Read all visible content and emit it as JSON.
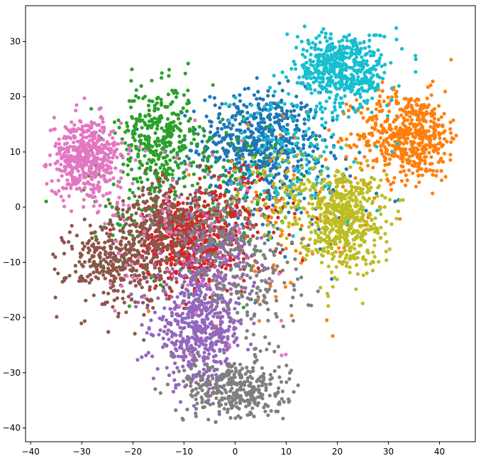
{
  "chart_data": {
    "type": "scatter",
    "title": "",
    "xlabel": "",
    "ylabel": "",
    "xlim": [
      -41,
      47
    ],
    "ylim": [
      -42.5,
      36.5
    ],
    "x_ticks": [
      -40,
      -30,
      -20,
      -10,
      0,
      10,
      20,
      30,
      40
    ],
    "y_ticks": [
      -40,
      -30,
      -20,
      -10,
      0,
      10,
      20,
      30
    ],
    "grid": false,
    "legend": "none",
    "series": [
      {
        "color": "#1f77b4",
        "approx_points": 700,
        "clusters": [
          {
            "cx": 5,
            "cy": 12,
            "sx": 6,
            "sy": 4.5,
            "w": 0.8
          },
          {
            "cx": 8,
            "cy": 2,
            "sx": 8,
            "sy": 5,
            "w": 0.2
          }
        ]
      },
      {
        "color": "#ff7f0e",
        "approx_points": 650,
        "clusters": [
          {
            "cx": 34,
            "cy": 13,
            "sx": 5,
            "sy": 4,
            "w": 0.85
          },
          {
            "cx": 12,
            "cy": -2,
            "sx": 9,
            "sy": 8,
            "w": 0.15
          }
        ]
      },
      {
        "color": "#2ca02c",
        "approx_points": 600,
        "clusters": [
          {
            "cx": -15,
            "cy": 13,
            "sx": 3.5,
            "sy": 4.5,
            "w": 0.5
          },
          {
            "cx": -10,
            "cy": 3,
            "sx": 9,
            "sy": 8,
            "w": 0.5
          }
        ]
      },
      {
        "color": "#d62728",
        "approx_points": 650,
        "clusters": [
          {
            "cx": -10,
            "cy": -6,
            "sx": 4.5,
            "sy": 4,
            "w": 0.65
          },
          {
            "cx": -2,
            "cy": -3,
            "sx": 6,
            "sy": 5,
            "w": 0.35
          }
        ]
      },
      {
        "color": "#9467bd",
        "approx_points": 700,
        "clusters": [
          {
            "cx": -7,
            "cy": -22,
            "sx": 4.5,
            "sy": 5,
            "w": 0.8
          },
          {
            "cx": -4,
            "cy": -9,
            "sx": 4,
            "sy": 4,
            "w": 0.2
          }
        ]
      },
      {
        "color": "#8c564b",
        "approx_points": 600,
        "clusters": [
          {
            "cx": -23,
            "cy": -10,
            "sx": 5,
            "sy": 4,
            "w": 0.6
          },
          {
            "cx": -15,
            "cy": -3,
            "sx": 4,
            "sy": 3.5,
            "w": 0.4
          }
        ]
      },
      {
        "color": "#e377c2",
        "approx_points": 600,
        "clusters": [
          {
            "cx": -29,
            "cy": 9,
            "sx": 3.5,
            "sy": 3.5,
            "w": 0.85
          },
          {
            "cx": -10,
            "cy": -5,
            "sx": 10,
            "sy": 8,
            "w": 0.15
          }
        ]
      },
      {
        "color": "#7f7f7f",
        "approx_points": 650,
        "clusters": [
          {
            "cx": 0,
            "cy": -33,
            "sx": 5,
            "sy": 3,
            "w": 0.55
          },
          {
            "cx": 3,
            "cy": -14,
            "sx": 6,
            "sy": 5,
            "w": 0.25
          },
          {
            "cx": -3,
            "cy": -4,
            "sx": 4,
            "sy": 4,
            "w": 0.2
          }
        ]
      },
      {
        "color": "#bcbd22",
        "approx_points": 650,
        "clusters": [
          {
            "cx": 21,
            "cy": -2,
            "sx": 4,
            "sy": 4.5,
            "w": 0.85
          },
          {
            "cx": 10,
            "cy": 2,
            "sx": 5,
            "sy": 4,
            "w": 0.15
          }
        ]
      },
      {
        "color": "#17becf",
        "approx_points": 650,
        "clusters": [
          {
            "cx": 21,
            "cy": 25,
            "sx": 4.5,
            "sy": 3.5,
            "w": 0.8
          },
          {
            "cx": 12,
            "cy": 12,
            "sx": 6,
            "sy": 6,
            "w": 0.2
          }
        ]
      }
    ]
  }
}
